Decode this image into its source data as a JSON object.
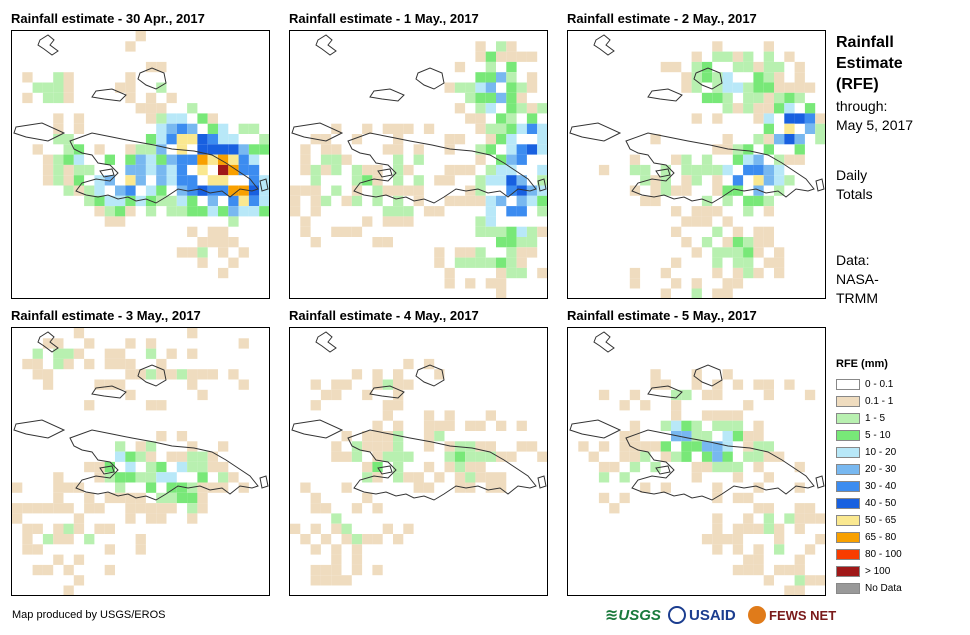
{
  "panels": [
    {
      "title": "Rainfall estimate - 30 Apr., 2017",
      "scene": "apr30"
    },
    {
      "title": "Rainfall estimate - 1 May., 2017",
      "scene": "may1"
    },
    {
      "title": "Rainfall estimate - 2 May., 2017",
      "scene": "may2"
    },
    {
      "title": "Rainfall estimate - 3 May., 2017",
      "scene": "may3"
    },
    {
      "title": "Rainfall estimate - 4 May., 2017",
      "scene": "may4"
    },
    {
      "title": "Rainfall estimate - 5 May., 2017",
      "scene": "may5"
    }
  ],
  "sidebar": {
    "title_lines": [
      "Rainfall",
      "Estimate",
      "(RFE)"
    ],
    "through_label": "through:",
    "through_date": "May 5, 2017",
    "totals_lines": [
      "Daily",
      "Totals"
    ],
    "data_lines": [
      "Data:",
      "NASA-",
      "TRMM"
    ]
  },
  "legend": {
    "title": "RFE (mm)",
    "items": [
      {
        "label": "0 - 0.1",
        "color": "#ffffff"
      },
      {
        "label": "0.1 - 1",
        "color": "#efdcbf"
      },
      {
        "label": "1 - 5",
        "color": "#b8f0b0"
      },
      {
        "label": "5 - 10",
        "color": "#78e878"
      },
      {
        "label": "10 - 20",
        "color": "#b8e8f8"
      },
      {
        "label": "20 - 30",
        "color": "#78b8f0"
      },
      {
        "label": "30 - 40",
        "color": "#3c8cf0"
      },
      {
        "label": "40 - 50",
        "color": "#1860e0"
      },
      {
        "label": "50 - 65",
        "color": "#fae890"
      },
      {
        "label": "65 - 80",
        "color": "#f8a000"
      },
      {
        "label": "80 - 100",
        "color": "#f83c00"
      },
      {
        "label": "> 100",
        "color": "#a01818"
      },
      {
        "label": "No Data",
        "color": "#999999"
      }
    ]
  },
  "footer": {
    "credit": "Map produced by USGS/EROS",
    "logos": [
      "USGS",
      "USAID",
      "FEWS NET"
    ]
  }
}
